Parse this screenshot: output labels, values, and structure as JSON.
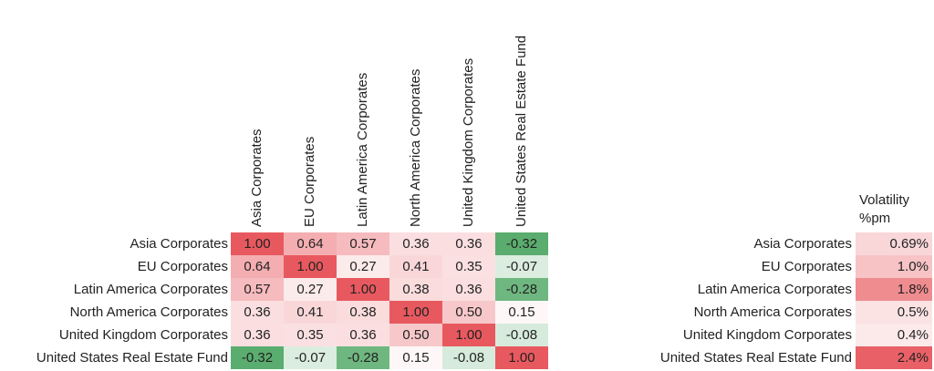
{
  "chart_data": [
    {
      "type": "heatmap",
      "rows": [
        "Asia Corporates",
        "EU Corporates",
        "Latin America Corporates",
        "North America Corporates",
        "United Kingdom Corporates",
        "United States Real Estate Fund"
      ],
      "columns": [
        "Asia Corporates",
        "EU Corporates",
        "Latin America Corporates",
        "North America Corporates",
        "United Kingdom Corporates",
        "United States Real Estate Fund"
      ],
      "values": [
        [
          1.0,
          0.64,
          0.57,
          0.36,
          0.36,
          -0.32
        ],
        [
          0.64,
          1.0,
          0.27,
          0.41,
          0.35,
          -0.07
        ],
        [
          0.57,
          0.27,
          1.0,
          0.38,
          0.36,
          -0.28
        ],
        [
          0.36,
          0.41,
          0.38,
          1.0,
          0.5,
          0.15
        ],
        [
          0.36,
          0.35,
          0.36,
          0.5,
          1.0,
          -0.08
        ],
        [
          -0.32,
          -0.07,
          -0.28,
          0.15,
          -0.08,
          1.0
        ]
      ],
      "labels": [
        [
          "1.00",
          "0.64",
          "0.57",
          "0.36",
          "0.36",
          "-0.32"
        ],
        [
          "0.64",
          "1.00",
          "0.27",
          "0.41",
          "0.35",
          "-0.07"
        ],
        [
          "0.57",
          "0.27",
          "1.00",
          "0.38",
          "0.36",
          "-0.28"
        ],
        [
          "0.36",
          "0.41",
          "0.38",
          "1.00",
          "0.50",
          "0.15"
        ],
        [
          "0.36",
          "0.35",
          "0.36",
          "0.50",
          "1.00",
          "-0.08"
        ],
        [
          "-0.32",
          "-0.07",
          "-0.28",
          "0.15",
          "-0.08",
          "1.00"
        ]
      ],
      "colors": {
        "positive": "#e8595f",
        "neutral": "#ffffff",
        "negative": "#5aad6e"
      }
    },
    {
      "type": "heatmap",
      "title": "Volatility %pm",
      "title_lines": [
        "Volatility",
        "%pm"
      ],
      "rows": [
        "Asia Corporates",
        "EU Corporates",
        "Latin America Corporates",
        "North America Corporates",
        "United Kingdom Corporates",
        "United States Real Estate Fund"
      ],
      "values": [
        0.69,
        1.0,
        1.8,
        0.5,
        0.4,
        2.4
      ],
      "labels": [
        "0.69%",
        "1.0%",
        "1.8%",
        "0.5%",
        "0.4%",
        "2.4%"
      ],
      "colors": {
        "high": "#e8595f",
        "low": "#ffffff"
      }
    }
  ]
}
